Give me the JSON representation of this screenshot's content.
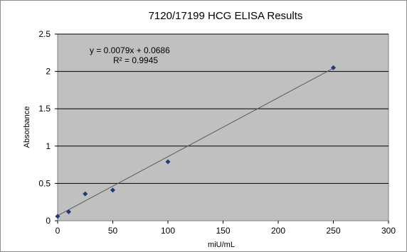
{
  "chart_data": {
    "type": "scatter",
    "title": "7120/17199 HCG ELISA Results",
    "xlabel": "miU/mL",
    "ylabel": "Absorbance",
    "xlim": [
      0,
      300
    ],
    "ylim": [
      0,
      2.5
    ],
    "x_ticks": [
      0,
      50,
      100,
      150,
      200,
      250,
      300
    ],
    "y_ticks": [
      0,
      0.5,
      1,
      1.5,
      2,
      2.5
    ],
    "x_tick_labels": [
      "0",
      "50",
      "100",
      "150",
      "200",
      "250",
      "300"
    ],
    "y_tick_labels": [
      "0",
      "0.5",
      "1",
      "1.5",
      "2",
      "2.5"
    ],
    "grid": "horizontal",
    "legend": "none",
    "series": [
      {
        "x": [
          0,
          10,
          25,
          50,
          100,
          250
        ],
        "y": [
          0.06,
          0.12,
          0.36,
          0.41,
          0.79,
          2.05
        ],
        "marker": "diamond",
        "color": "#1f3a7a"
      }
    ],
    "trendline": {
      "type": "linear",
      "slope": 0.0079,
      "intercept": 0.0686,
      "x_range": [
        0,
        250
      ],
      "color": "#5a5a5a"
    },
    "annotations": {
      "equation": "y = 0.0079x + 0.0686",
      "r_squared": "R² = 0.9945"
    },
    "colors": {
      "plot_background": "#c0c0c0",
      "gridline": "#000000"
    }
  }
}
